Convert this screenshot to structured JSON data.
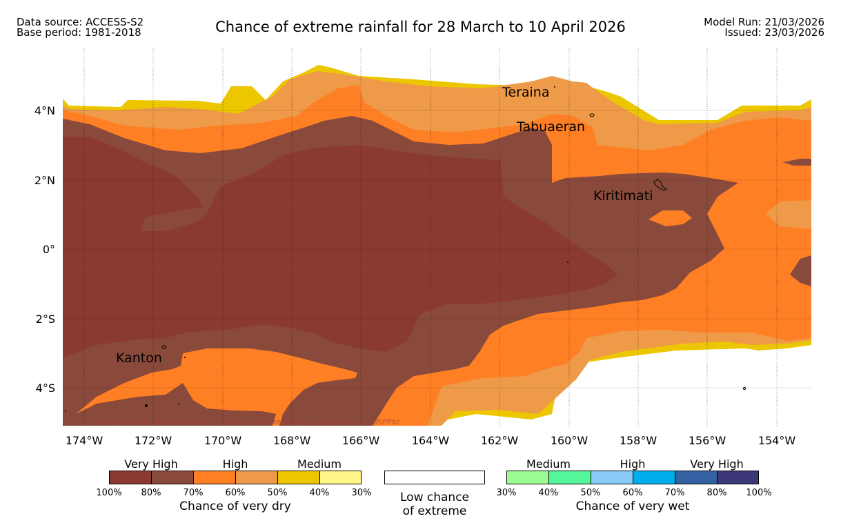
{
  "header": {
    "data_source": "Data source: ACCESS-S2",
    "base_period": "Base period: 1981-2018",
    "title": "Chance of extreme rainfall for 28 March to 10 April 2026",
    "model_run": "Model Run: 21/03/2026",
    "issued": "Issued: 23/03/2026"
  },
  "map": {
    "lat_labels": [
      "4°N",
      "2°N",
      "0°",
      "2°S",
      "4°S"
    ],
    "lon_labels": [
      "174°W",
      "172°W",
      "170°W",
      "168°W",
      "166°W",
      "164°W",
      "162°W",
      "160°W",
      "158°W",
      "156°W",
      "154°W"
    ],
    "places": [
      "Teraina",
      "Tabuaeran",
      "Kiritimati",
      "Kanton"
    ],
    "copyright": "© Commonwealth of Australia 2026, Bureau of Meteorology, supported by COSPPac"
  },
  "legend": {
    "dry": {
      "categories": [
        "Very High",
        "High",
        "Medium"
      ],
      "colors": [
        "#8b3a32",
        "#8a4a3b",
        "#ff7f25",
        "#ee9a48",
        "#ecc700",
        "#fff78a"
      ],
      "ticks": [
        "100%",
        "80%",
        "70%",
        "60%",
        "50%",
        "40%",
        "30%"
      ],
      "title": "Chance of very dry"
    },
    "neutral": {
      "line1": "Low chance",
      "line2": "of extreme"
    },
    "wet": {
      "categories": [
        "Medium",
        "High",
        "Very High"
      ],
      "colors": [
        "#9cfc94",
        "#54f59b",
        "#88cbf6",
        "#00aeeb",
        "#3461a1",
        "#3d3877"
      ],
      "ticks": [
        "30%",
        "40%",
        "50%",
        "60%",
        "70%",
        "80%",
        "100%"
      ],
      "title": "Chance of very wet"
    }
  }
}
